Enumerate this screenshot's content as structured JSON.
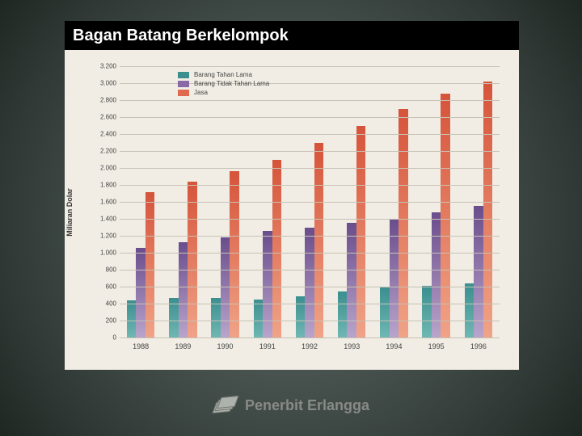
{
  "slide": {
    "title": "Bagan Batang Berkelompok",
    "footer_text": "Penerbit Erlangga"
  },
  "chart": {
    "type": "bar",
    "grouped": true,
    "background_color": "#f1ede4",
    "grid_color": "#c7c2b6",
    "y_axis": {
      "label": "Miliaran Dolar",
      "min": 0,
      "max": 3200,
      "tick_step": 200,
      "label_fontsize": 9,
      "tick_fontsize": 8,
      "tick_format": "dot_thousands"
    },
    "x_axis": {
      "categories": [
        "1988",
        "1989",
        "1990",
        "1991",
        "1992",
        "1993",
        "1994",
        "1995",
        "1996"
      ],
      "tick_fontsize": 9
    },
    "legend": {
      "position": "top-left",
      "items": [
        {
          "label": "Barang Tahan Lama",
          "color": "#3b8f8f"
        },
        {
          "label": "Barang Tidak Tahan Lama",
          "color": "#8a6aa6"
        },
        {
          "label": "Jasa",
          "color": "#e06a4f"
        }
      ]
    },
    "series": [
      {
        "name": "Barang Tahan Lama",
        "color_top": "#3b8f8f",
        "color_bottom": "#6fb7b3",
        "values": [
          440,
          470,
          470,
          450,
          490,
          540,
          590,
          610,
          640
        ]
      },
      {
        "name": "Barang Tidak Tahan Lama",
        "color_top": "#6a4d8c",
        "color_bottom": "#b8a4cb",
        "values": [
          1060,
          1120,
          1180,
          1260,
          1300,
          1350,
          1400,
          1480,
          1550
        ]
      },
      {
        "name": "Jasa",
        "color_top": "#d5543a",
        "color_bottom": "#f0a387",
        "values": [
          1710,
          1840,
          1960,
          2100,
          2300,
          2500,
          2700,
          2880,
          3020
        ]
      }
    ],
    "bar_width_ratio": 0.22,
    "group_gap_ratio": 0.12
  }
}
